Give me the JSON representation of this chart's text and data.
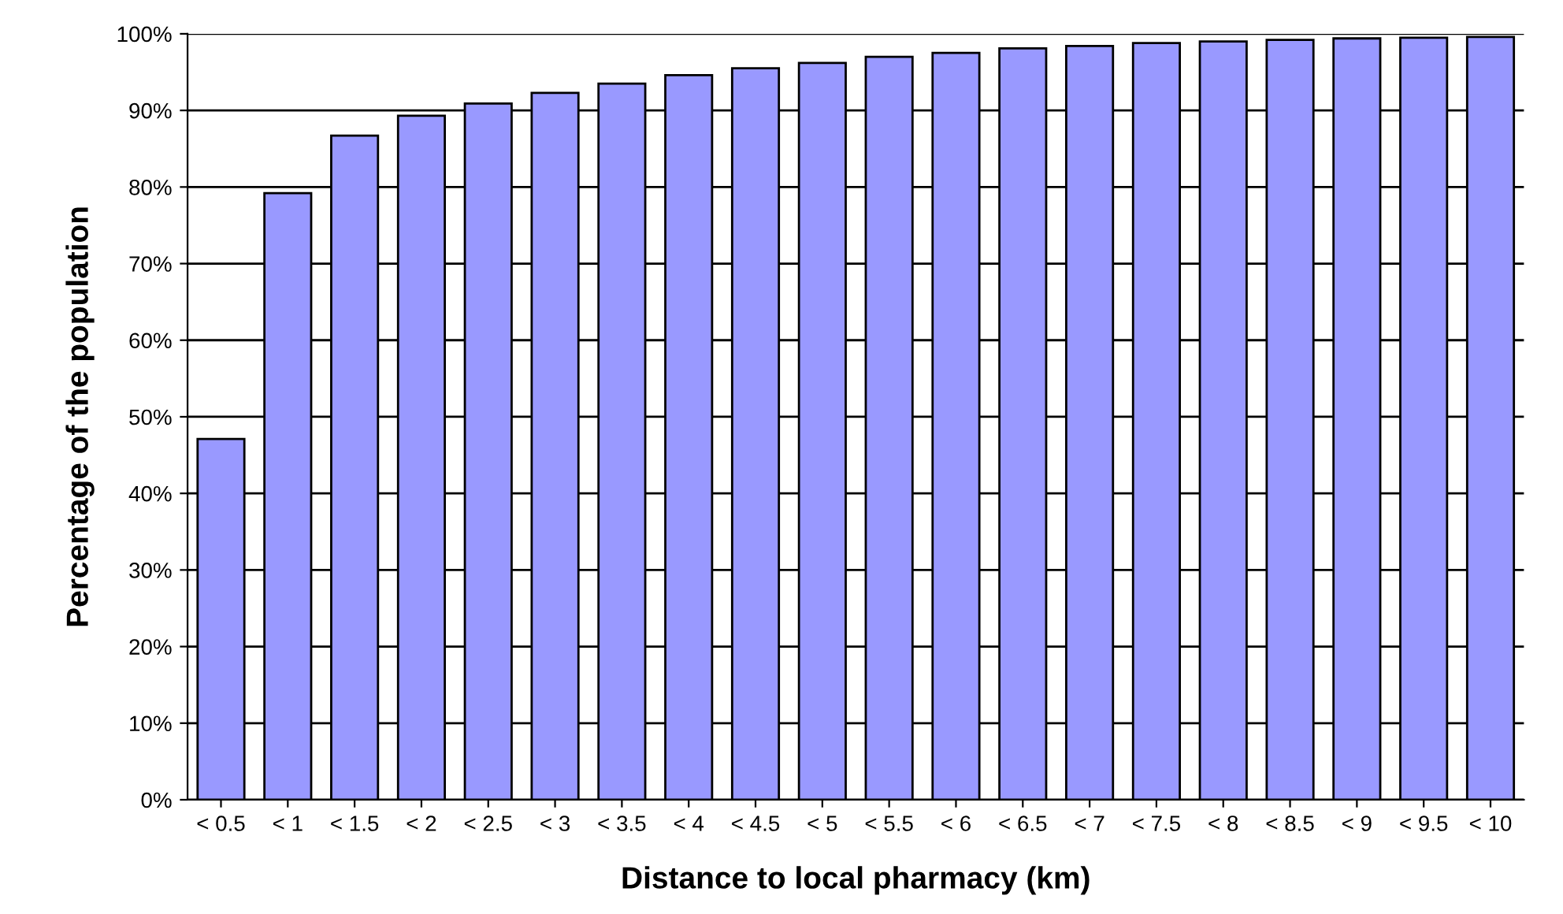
{
  "chart_data": {
    "type": "bar",
    "xlabel": "Distance to local pharmacy (km)",
    "ylabel": "Percentage of the population",
    "categories": [
      "< 0.5",
      "< 1",
      "< 1.5",
      "< 2",
      "< 2.5",
      "< 3",
      "< 3.5",
      "< 4",
      "< 4.5",
      "< 5",
      "< 5.5",
      "< 6",
      "< 6.5",
      "< 7",
      "< 7.5",
      "< 8",
      "< 8.5",
      "< 9",
      "< 9.5",
      "< 10"
    ],
    "values": [
      47.1,
      79.2,
      86.7,
      89.3,
      90.9,
      92.3,
      93.5,
      94.6,
      95.5,
      96.2,
      97.0,
      97.5,
      98.1,
      98.4,
      98.8,
      99.0,
      99.2,
      99.4,
      99.5,
      99.6
    ],
    "color": "#9999ff",
    "ylim": [
      0,
      100
    ],
    "yticks": [
      {
        "value": 0,
        "label": "0%"
      },
      {
        "value": 10,
        "label": "10%"
      },
      {
        "value": 20,
        "label": "20%"
      },
      {
        "value": 30,
        "label": "30%"
      },
      {
        "value": 40,
        "label": "40%"
      },
      {
        "value": 50,
        "label": "50%"
      },
      {
        "value": 60,
        "label": "60%"
      },
      {
        "value": 70,
        "label": "70%"
      },
      {
        "value": 80,
        "label": "80%"
      },
      {
        "value": 90,
        "label": "90%"
      },
      {
        "value": 100,
        "label": "100%"
      }
    ],
    "grid": "y"
  }
}
